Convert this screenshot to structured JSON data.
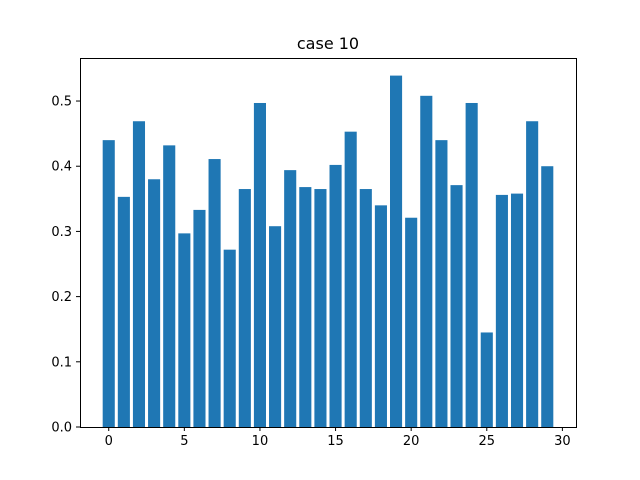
{
  "chart_data": {
    "type": "bar",
    "title": "case 10",
    "xlabel": "",
    "ylabel": "",
    "x": [
      0,
      1,
      2,
      3,
      4,
      5,
      6,
      7,
      8,
      9,
      10,
      11,
      12,
      13,
      14,
      15,
      16,
      17,
      18,
      19,
      20,
      21,
      22,
      23,
      24,
      25,
      26,
      27,
      28,
      29
    ],
    "values": [
      0.44,
      0.353,
      0.469,
      0.38,
      0.432,
      0.297,
      0.333,
      0.411,
      0.272,
      0.365,
      0.497,
      0.308,
      0.394,
      0.368,
      0.365,
      0.402,
      0.453,
      0.365,
      0.34,
      0.539,
      0.321,
      0.508,
      0.44,
      0.371,
      0.497,
      0.145,
      0.356,
      0.358,
      0.469,
      0.4
    ],
    "xlim": [
      -1.9,
      30.9
    ],
    "ylim": [
      0,
      0.566
    ],
    "xticks": [
      0,
      5,
      10,
      15,
      20,
      25,
      30
    ],
    "yticks": [
      0.0,
      0.1,
      0.2,
      0.3,
      0.4,
      0.5
    ],
    "ytick_labels": [
      "0.0",
      "0.1",
      "0.2",
      "0.3",
      "0.4",
      "0.5"
    ],
    "bar_color": "#1f77b4",
    "grid": false,
    "legend": "none"
  }
}
